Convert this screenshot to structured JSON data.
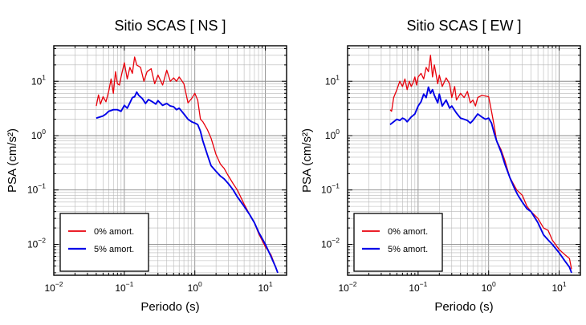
{
  "chart_data": [
    {
      "type": "line",
      "title": "Sitio SCAS [ NS ]",
      "xlabel": "Periodo (s)",
      "ylabel": "PSA (cm/s²)",
      "xscale": "log",
      "yscale": "log",
      "xlim": [
        0.01,
        20
      ],
      "ylim": [
        0.0027,
        45
      ],
      "grid": true,
      "legend_position": "bottom-left",
      "x_ticks": [
        {
          "base": "10",
          "exp": "−2"
        },
        {
          "base": "10",
          "exp": "−1"
        },
        {
          "base": "10",
          "exp": "0"
        },
        {
          "base": "10",
          "exp": "1"
        }
      ],
      "y_ticks": [
        {
          "base": "10",
          "exp": "−2"
        },
        {
          "base": "10",
          "exp": "−1"
        },
        {
          "base": "10",
          "exp": "0"
        },
        {
          "base": "10",
          "exp": "1"
        }
      ],
      "series": [
        {
          "name": "0% amort.",
          "color": "#e8000b",
          "x": [
            0.04,
            0.043,
            0.046,
            0.05,
            0.055,
            0.06,
            0.065,
            0.07,
            0.075,
            0.08,
            0.085,
            0.09,
            0.1,
            0.11,
            0.12,
            0.13,
            0.14,
            0.15,
            0.17,
            0.19,
            0.21,
            0.24,
            0.27,
            0.3,
            0.35,
            0.4,
            0.45,
            0.5,
            0.55,
            0.6,
            0.7,
            0.8,
            0.9,
            1.0,
            1.1,
            1.2,
            1.3,
            1.5,
            1.7,
            2.0,
            2.3,
            2.6,
            3.0,
            3.5,
            4.0,
            5.0,
            6.0,
            7.0,
            8.0,
            10.0,
            12.0,
            14.0,
            15.0
          ],
          "y": [
            3.5,
            5.6,
            3.8,
            5.2,
            4.2,
            6.5,
            11.0,
            6.0,
            15.0,
            9.0,
            8.5,
            12.0,
            22.0,
            11.0,
            18.0,
            14.0,
            28.0,
            20.0,
            18.0,
            10.0,
            15.0,
            17.0,
            9.0,
            13.0,
            8.5,
            16.0,
            10.0,
            11.5,
            10.0,
            12.0,
            9.0,
            4.0,
            4.8,
            6.0,
            4.5,
            2.0,
            1.8,
            1.3,
            0.9,
            0.45,
            0.3,
            0.25,
            0.18,
            0.13,
            0.1,
            0.055,
            0.035,
            0.025,
            0.016,
            0.009,
            0.0065,
            0.0038,
            0.003
          ]
        },
        {
          "name": "5% amort.",
          "color": "#0000e8",
          "x": [
            0.04,
            0.045,
            0.05,
            0.055,
            0.06,
            0.065,
            0.07,
            0.08,
            0.09,
            0.1,
            0.11,
            0.12,
            0.13,
            0.14,
            0.15,
            0.16,
            0.18,
            0.2,
            0.22,
            0.25,
            0.28,
            0.3,
            0.35,
            0.4,
            0.45,
            0.5,
            0.55,
            0.6,
            0.7,
            0.8,
            0.9,
            1.0,
            1.1,
            1.2,
            1.3,
            1.5,
            1.7,
            2.0,
            2.3,
            2.6,
            3.0,
            3.5,
            4.0,
            5.0,
            6.0,
            7.0,
            8.0,
            10.0,
            12.0,
            14.0,
            15.0
          ],
          "y": [
            2.1,
            2.2,
            2.3,
            2.5,
            2.8,
            2.9,
            3.0,
            3.0,
            2.8,
            3.6,
            3.2,
            4.0,
            5.0,
            5.2,
            6.3,
            5.5,
            4.8,
            3.9,
            4.6,
            4.2,
            3.8,
            4.4,
            3.6,
            3.9,
            3.5,
            3.4,
            3.0,
            3.2,
            2.5,
            2.0,
            1.8,
            1.7,
            1.6,
            1.2,
            0.8,
            0.45,
            0.28,
            0.22,
            0.18,
            0.16,
            0.13,
            0.1,
            0.075,
            0.05,
            0.035,
            0.025,
            0.017,
            0.01,
            0.006,
            0.0038,
            0.003
          ]
        }
      ]
    },
    {
      "type": "line",
      "title": "Sitio SCAS [ EW ]",
      "xlabel": "Periodo (s)",
      "ylabel": "PSA (cm/s²)",
      "xscale": "log",
      "yscale": "log",
      "xlim": [
        0.01,
        20
      ],
      "ylim": [
        0.0027,
        45
      ],
      "grid": true,
      "legend_position": "bottom-left",
      "x_ticks": [
        {
          "base": "10",
          "exp": "−2"
        },
        {
          "base": "10",
          "exp": "−1"
        },
        {
          "base": "10",
          "exp": "0"
        },
        {
          "base": "10",
          "exp": "1"
        }
      ],
      "y_ticks": [
        {
          "base": "10",
          "exp": "−2"
        },
        {
          "base": "10",
          "exp": "−1"
        },
        {
          "base": "10",
          "exp": "0"
        },
        {
          "base": "10",
          "exp": "1"
        }
      ],
      "series": [
        {
          "name": "0% amort.",
          "color": "#e8000b",
          "x": [
            0.04,
            0.042,
            0.045,
            0.05,
            0.055,
            0.06,
            0.065,
            0.07,
            0.075,
            0.08,
            0.085,
            0.09,
            0.095,
            0.1,
            0.11,
            0.12,
            0.13,
            0.14,
            0.15,
            0.16,
            0.17,
            0.19,
            0.2,
            0.22,
            0.25,
            0.28,
            0.3,
            0.33,
            0.35,
            0.4,
            0.45,
            0.5,
            0.55,
            0.6,
            0.65,
            0.7,
            0.8,
            1.0,
            1.1,
            1.2,
            1.3,
            1.5,
            1.7,
            2.0,
            2.5,
            3.0,
            3.5,
            4.0,
            5.0,
            6.0,
            7.0,
            8.0,
            10.0,
            12.0,
            14.0,
            15.0
          ],
          "y": [
            3.0,
            2.8,
            5.0,
            7.0,
            10.0,
            8.0,
            11.0,
            7.0,
            10.0,
            8.0,
            9.5,
            12.0,
            8.5,
            12.0,
            14.0,
            11.0,
            18.0,
            15.0,
            30.0,
            12.0,
            20.0,
            9.0,
            13.0,
            8.0,
            11.5,
            9.0,
            5.0,
            8.0,
            4.5,
            6.0,
            5.0,
            6.5,
            4.0,
            4.5,
            3.5,
            5.0,
            5.5,
            5.2,
            2.8,
            1.5,
            0.8,
            0.55,
            0.35,
            0.17,
            0.1,
            0.08,
            0.05,
            0.04,
            0.03,
            0.02,
            0.018,
            0.012,
            0.008,
            0.0065,
            0.0055,
            0.0035
          ]
        },
        {
          "name": "5% amort.",
          "color": "#0000e8",
          "x": [
            0.04,
            0.045,
            0.05,
            0.055,
            0.06,
            0.065,
            0.07,
            0.08,
            0.09,
            0.1,
            0.11,
            0.12,
            0.13,
            0.14,
            0.15,
            0.16,
            0.17,
            0.19,
            0.2,
            0.22,
            0.25,
            0.28,
            0.3,
            0.35,
            0.4,
            0.45,
            0.5,
            0.55,
            0.6,
            0.7,
            0.8,
            0.9,
            1.0,
            1.1,
            1.2,
            1.3,
            1.5,
            1.7,
            2.0,
            2.3,
            2.6,
            3.0,
            3.5,
            4.0,
            5.0,
            6.0,
            7.0,
            8.0,
            10.0,
            12.0,
            14.0,
            15.0
          ],
          "y": [
            1.6,
            1.8,
            2.0,
            1.9,
            2.1,
            2.0,
            1.8,
            2.2,
            2.5,
            3.5,
            4.2,
            5.8,
            5.0,
            7.8,
            6.0,
            7.0,
            5.5,
            4.0,
            5.8,
            3.5,
            4.5,
            3.2,
            3.5,
            2.6,
            2.1,
            2.0,
            1.9,
            1.7,
            1.9,
            2.5,
            2.2,
            2.0,
            2.1,
            1.7,
            1.1,
            0.8,
            0.5,
            0.3,
            0.17,
            0.11,
            0.08,
            0.06,
            0.045,
            0.04,
            0.025,
            0.015,
            0.012,
            0.01,
            0.007,
            0.005,
            0.0038,
            0.003
          ]
        }
      ]
    }
  ]
}
